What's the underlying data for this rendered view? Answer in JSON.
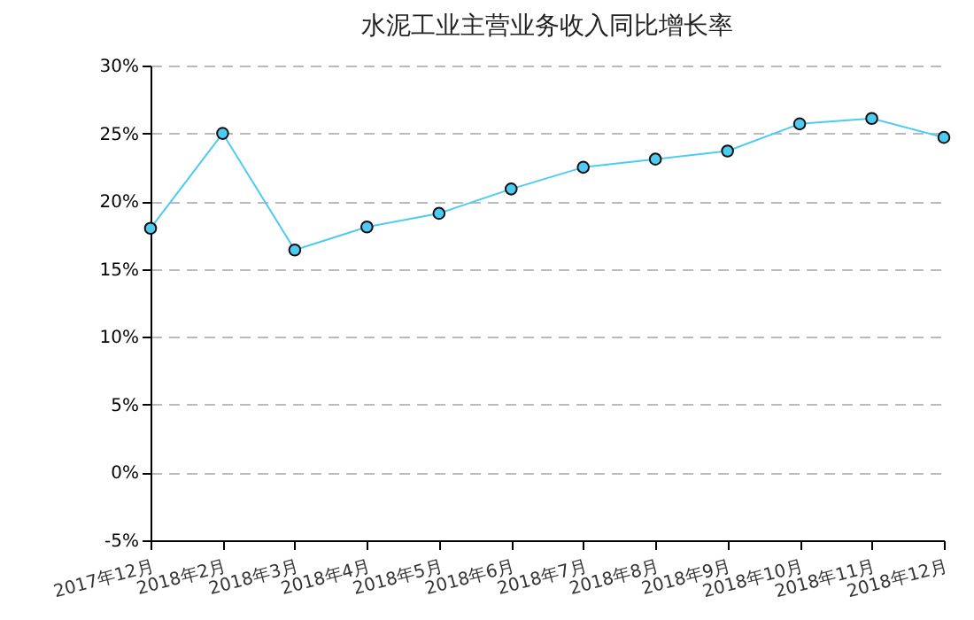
{
  "chart_data": {
    "type": "line",
    "title": "水泥工业主营业务收入同比增长率",
    "categories": [
      "2017年12月",
      "2018年2月",
      "2018年3月",
      "2018年4月",
      "2018年5月",
      "2018年6月",
      "2018年7月",
      "2018年8月",
      "2018年9月",
      "2018年10月",
      "2018年11月",
      "2018年12月"
    ],
    "series": [
      {
        "color": "#4dcbf2",
        "values": [
          18.0,
          25.0,
          16.4,
          18.1,
          19.1,
          20.9,
          22.5,
          23.1,
          23.7,
          25.7,
          26.1,
          24.7
        ]
      }
    ],
    "ylim": [
      -5,
      30
    ],
    "yticks": [
      {
        "value": -5,
        "label": "-5%"
      },
      {
        "value": 0,
        "label": "0%"
      },
      {
        "value": 5,
        "label": "5%"
      },
      {
        "value": 10,
        "label": "10%"
      },
      {
        "value": 15,
        "label": "15%"
      },
      {
        "value": 20,
        "label": "20%"
      },
      {
        "value": 25,
        "label": "25%"
      },
      {
        "value": 30,
        "label": "30%"
      }
    ],
    "grid": "y",
    "marker": "circle",
    "line_style": "solid",
    "legend": false
  }
}
